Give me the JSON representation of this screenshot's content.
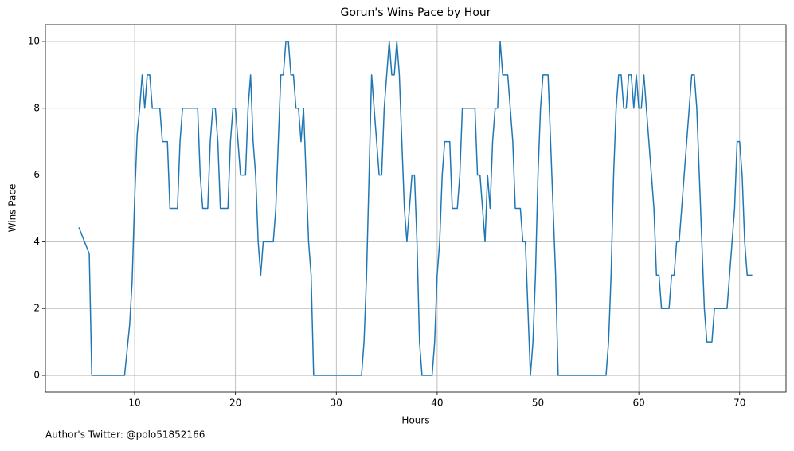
{
  "chart_data": {
    "type": "line",
    "title": "Gorun's Wins Pace by Hour",
    "x_label": "Hours",
    "y_label": "Wins Pace",
    "footnote": "Author's Twitter: @polo51852166",
    "xlim": [
      1.15,
      74.6
    ],
    "ylim": [
      -0.5,
      10.5
    ],
    "xticks": [
      10,
      20,
      30,
      40,
      50,
      60,
      70
    ],
    "yticks": [
      0,
      2,
      4,
      6,
      8,
      10
    ],
    "grid": true,
    "x": [
      4.47,
      5.5,
      5.75,
      9.0,
      9.5,
      9.75,
      10,
      10.25,
      10.5,
      10.75,
      11,
      11.25,
      11.5,
      11.75,
      12.5,
      12.75,
      13.25,
      13.5,
      14.25,
      14.5,
      14.75,
      16.25,
      16.5,
      16.75,
      17.25,
      17.5,
      17.75,
      18,
      18.25,
      18.5,
      19.25,
      19.5,
      19.75,
      20,
      20.25,
      20.5,
      21,
      21.25,
      21.5,
      21.75,
      22,
      22.25,
      22.5,
      22.75,
      23.75,
      24,
      24.25,
      24.5,
      24.75,
      25,
      25.25,
      25.5,
      25.75,
      26,
      26.25,
      26.5,
      26.75,
      27,
      27.25,
      27.5,
      27.75,
      32.5,
      32.75,
      33,
      33.25,
      33.5,
      33.75,
      34,
      34.25,
      34.5,
      34.75,
      35,
      35.25,
      35.5,
      35.75,
      36,
      36.25,
      36.5,
      36.75,
      37,
      37.25,
      37.5,
      37.75,
      38,
      38.25,
      38.5,
      39.5,
      39.75,
      40,
      40.25,
      40.5,
      40.75,
      41.25,
      41.5,
      42,
      42.25,
      42.5,
      43.75,
      44,
      44.25,
      44.5,
      44.75,
      45,
      45.25,
      45.5,
      45.75,
      46,
      46.25,
      46.5,
      47,
      47.25,
      47.5,
      47.75,
      48.25,
      48.5,
      48.75,
      49,
      49.25,
      49.5,
      49.75,
      50,
      50.25,
      50.5,
      51,
      51.25,
      51.5,
      51.75,
      52,
      56.75,
      57,
      57.25,
      57.5,
      57.75,
      58,
      58.25,
      58.5,
      58.75,
      59,
      59.25,
      59.5,
      59.75,
      60,
      60.25,
      60.5,
      60.75,
      61,
      61.25,
      61.5,
      61.75,
      62,
      62.25,
      63,
      63.25,
      63.5,
      63.75,
      64,
      64.25,
      64.5,
      64.75,
      65,
      65.25,
      65.5,
      65.75,
      66,
      66.25,
      66.5,
      66.75,
      67.25,
      67.5,
      68.75,
      69,
      69.25,
      69.5,
      69.75,
      70,
      70.25,
      70.5,
      70.75,
      71.25
    ],
    "series": [
      {
        "color": "#1f77b4",
        "values": [
          4.43,
          3.64,
          0,
          0,
          1.5,
          2.8,
          5.3,
          7.2,
          8,
          9,
          8,
          9,
          9,
          8,
          8,
          7,
          7,
          5,
          5,
          7,
          8,
          8,
          6,
          5,
          5,
          7,
          8,
          8,
          7,
          5,
          5,
          7,
          8,
          8,
          7,
          6,
          6,
          8,
          9,
          7,
          6,
          4,
          3,
          4,
          4,
          5,
          7,
          9,
          9,
          10,
          10,
          9,
          9,
          8,
          8,
          7,
          8,
          6,
          4,
          3,
          0,
          0,
          1,
          3,
          6,
          9,
          8,
          7,
          6,
          6,
          8,
          9,
          10,
          9,
          9,
          10,
          9,
          7,
          5,
          4,
          5,
          6,
          6,
          4,
          1,
          0,
          0,
          1,
          3,
          4,
          6,
          7,
          7,
          5,
          5,
          6,
          8,
          8,
          6,
          6,
          5,
          4,
          6,
          5,
          7,
          8,
          8,
          10,
          9,
          9,
          8,
          7,
          5,
          5,
          4,
          4,
          2,
          0,
          1,
          3,
          6,
          8,
          9,
          9,
          7,
          5,
          3,
          0,
          0,
          1,
          3,
          6,
          8,
          9,
          9,
          8,
          8,
          9,
          9,
          8,
          9,
          8,
          8,
          9,
          8,
          7,
          6,
          5,
          3,
          3,
          2,
          2,
          3,
          3,
          4,
          4,
          5,
          6,
          7,
          8,
          9,
          9,
          8,
          6,
          4,
          2,
          1,
          1,
          2,
          2,
          3,
          4,
          5,
          7,
          7,
          6,
          4,
          3,
          3
        ]
      }
    ]
  }
}
